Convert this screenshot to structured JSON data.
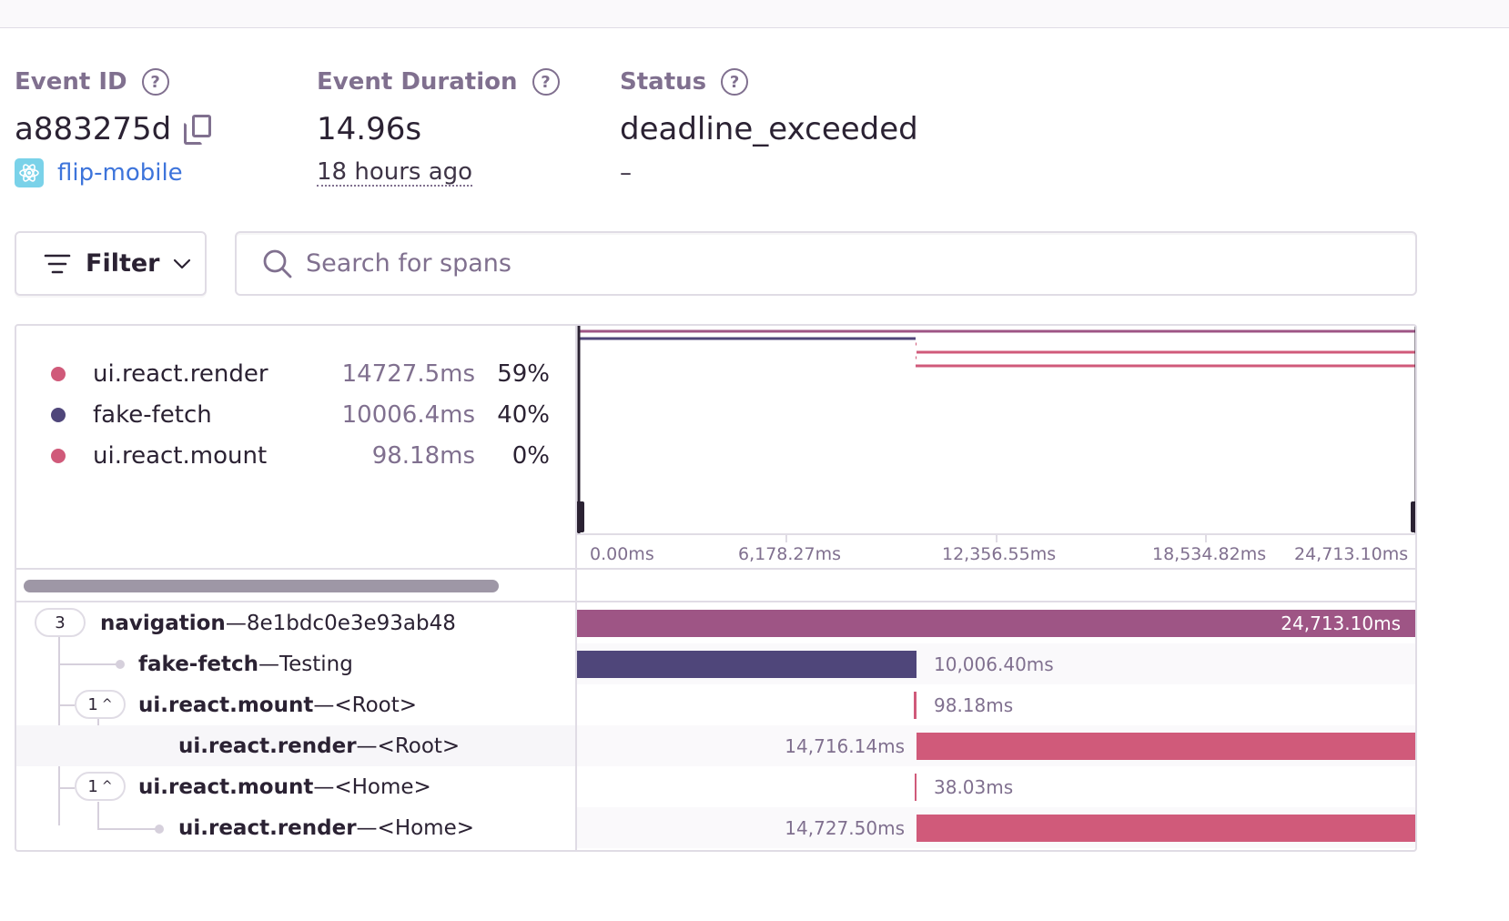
{
  "event": {
    "id_label": "Event ID",
    "id": "a883275d",
    "project": "flip-mobile",
    "duration_label": "Event Duration",
    "duration": "14.96s",
    "time_ago": "18 hours ago",
    "status_label": "Status",
    "status": "deadline_exceeded",
    "status_sub": "–",
    "help_glyph": "?"
  },
  "toolbar": {
    "filter_label": "Filter",
    "search_placeholder": "Search for spans"
  },
  "legend": [
    {
      "name": "ui.react.render",
      "duration": "14727.5ms",
      "percent": "59%",
      "color": "#d05a7a"
    },
    {
      "name": "fake-fetch",
      "duration": "10006.4ms",
      "percent": "40%",
      "color": "#4f467a"
    },
    {
      "name": "ui.react.mount",
      "duration": "98.18ms",
      "percent": "0%",
      "color": "#d05a7a"
    }
  ],
  "axis": {
    "ticks": [
      "0.00ms",
      "6,178.27ms",
      "12,356.55ms",
      "18,534.82ms",
      "24,713.10ms"
    ]
  },
  "spans": [
    {
      "op": "navigation",
      "desc": "8e1bdc0e3e93ab48",
      "count": "3",
      "duration": "24,713.10ms",
      "color": "#9e5585"
    },
    {
      "op": "fake-fetch",
      "desc": "Testing",
      "duration": "10,006.40ms",
      "color": "#4f467a"
    },
    {
      "op": "ui.react.mount",
      "desc": "<Root>",
      "count": "1",
      "duration": "98.18ms",
      "color": "#d05a7a"
    },
    {
      "op": "ui.react.render",
      "desc": "<Root>",
      "duration": "14,716.14ms",
      "color": "#d05a7a"
    },
    {
      "op": "ui.react.mount",
      "desc": "<Home>",
      "count": "1",
      "duration": "38.03ms",
      "color": "#d05a7a"
    },
    {
      "op": "ui.react.render",
      "desc": "<Home>",
      "duration": "14,727.50ms",
      "color": "#d05a7a"
    }
  ],
  "separator": " — ",
  "collapse_glyph": "^"
}
